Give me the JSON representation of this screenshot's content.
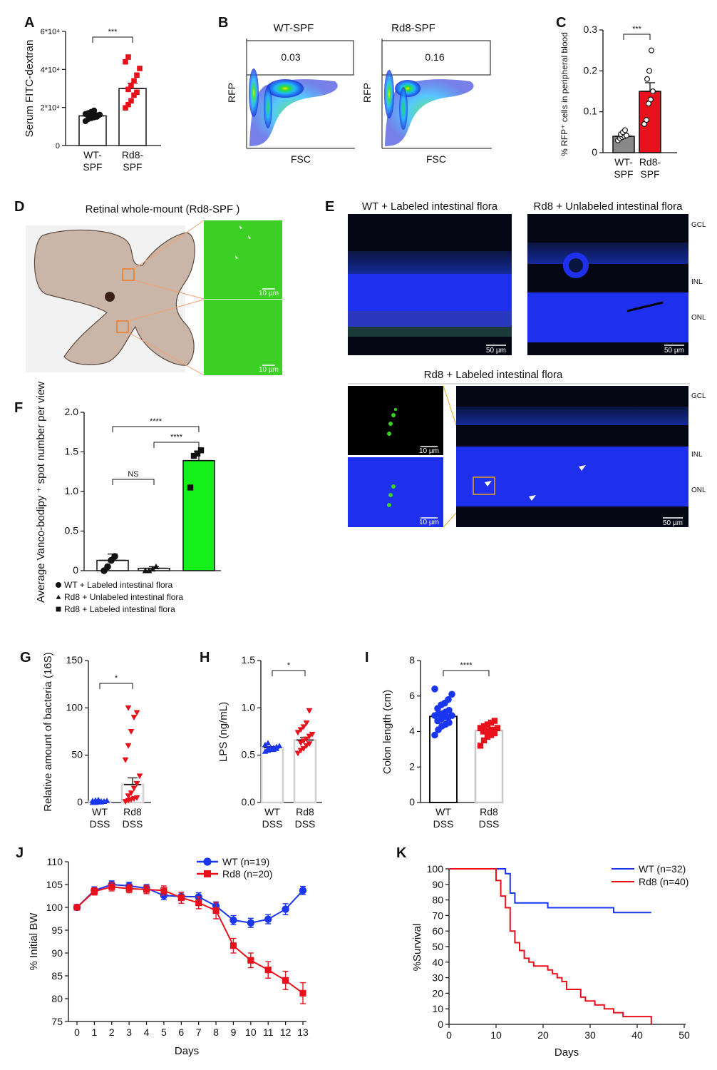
{
  "panel_letters": {
    "a": "A",
    "b": "B",
    "c": "C",
    "d": "D",
    "e": "E",
    "f": "F",
    "g": "G",
    "h": "H",
    "i": "I",
    "j": "J",
    "k": "K"
  },
  "colors": {
    "red": "#e8101a",
    "blue": "#1a36f0",
    "green": "#16f01a",
    "gray": "#888888",
    "micro_blue": "#1e30ee",
    "micro_green": "#3ccf24",
    "black": "#111111"
  },
  "images": {
    "d_title": "Retinal whole-mount (Rd8-SPF )",
    "d_scale_top": "10 µm",
    "d_scale_bottom": "10 µm",
    "e_title_wt": "WT + Labeled intestinal flora",
    "e_title_rd8u": "Rd8 + Unlabeled intestinal flora",
    "e_title_rd8l": "Rd8 + Labeled intestinal flora",
    "scale_50": "50 µm",
    "scale_10": "10 µm",
    "layer_gcl": "GCL",
    "layer_inl": "INL",
    "layer_onl": "ONL"
  },
  "chart_data": [
    {
      "id": "A",
      "type": "scatter-bar",
      "ylabel": "Serum FITC-dextran",
      "yticks": [
        "0",
        "2*10⁴",
        "4*10⁴",
        "6*10⁴"
      ],
      "ylim": [
        0,
        60000
      ],
      "categories": [
        [
          "WT-",
          "SPF"
        ],
        [
          "Rd8-",
          "SPF"
        ]
      ],
      "means": [
        15600,
        30000
      ],
      "sem": [
        700,
        2800
      ],
      "significance": "***",
      "points": [
        [
          12800,
          13900,
          14400,
          14800,
          15100,
          15300,
          15500,
          15700,
          15900,
          16200,
          16600,
          17100,
          17700,
          18400
        ],
        [
          19800,
          21500,
          23500,
          26500,
          28000,
          29500,
          31500,
          34000,
          37000,
          40500,
          44000,
          46500
        ]
      ]
    },
    {
      "id": "B",
      "type": "flow-cytometry",
      "panels": [
        {
          "title": "WT-SPF",
          "gate_value": "0.03"
        },
        {
          "title": "Rd8-SPF",
          "gate_value": "0.16"
        }
      ],
      "ylabel": "RFP",
      "xlabel": "FSC"
    },
    {
      "id": "C",
      "type": "scatter-bar",
      "ylabel": "% RFP⁺ cells in peripheral blood",
      "yticks": [
        "0",
        "0.1",
        "0.2",
        "0.3"
      ],
      "ylim": [
        0,
        0.3
      ],
      "categories": [
        [
          "WT-",
          "SPF"
        ],
        [
          "Rd8-",
          "SPF"
        ]
      ],
      "means": [
        0.04,
        0.15
      ],
      "sem": [
        0.005,
        0.021
      ],
      "significance": "***",
      "points": [
        [
          0.03,
          0.035,
          0.038,
          0.04,
          0.042,
          0.045,
          0.05,
          0.055
        ],
        [
          0.07,
          0.08,
          0.12,
          0.13,
          0.15,
          0.18,
          0.2,
          0.25
        ]
      ]
    },
    {
      "id": "F",
      "type": "scatter-bar",
      "ylabel": "Average Vanco-bodipy ⁺ spot number per view",
      "yticks": [
        "0",
        "0.5",
        "1.0",
        "1.5",
        "2.0"
      ],
      "ylim": [
        0,
        2.0
      ],
      "categories": [
        "",
        "",
        ""
      ],
      "means": [
        0.13,
        0.03,
        1.39
      ],
      "sem": [
        0.08,
        0.02,
        0.12
      ],
      "points": [
        [
          0.0,
          0.05,
          0.13,
          0.18
        ],
        [
          0.0,
          0.0,
          0.02,
          0.05
        ],
        [
          1.05,
          1.45,
          1.48,
          1.52
        ]
      ],
      "comparisons": [
        {
          "pair": [
            0,
            2
          ],
          "label": "****"
        },
        {
          "pair": [
            1,
            2
          ],
          "label": "****"
        },
        {
          "pair": [
            0,
            1
          ],
          "label": "NS"
        }
      ],
      "legend": [
        "WT  + Labeled intestinal flora",
        "Rd8 + Unlabeled intestinal flora",
        "Rd8 + Labeled intestinal flora"
      ]
    },
    {
      "id": "G",
      "type": "scatter-bar",
      "ylabel": "Relative amount of bacteria (16S)",
      "yticks": [
        "0",
        "50",
        "100",
        "150"
      ],
      "ylim": [
        0,
        150
      ],
      "categories": [
        [
          "WT",
          "DSS"
        ],
        [
          "Rd8",
          "DSS"
        ]
      ],
      "means": [
        1,
        19
      ],
      "sem": [
        0.5,
        7
      ],
      "significance": "*",
      "points": [
        [
          0,
          0,
          0.5,
          0.5,
          1,
          1,
          1,
          1.5,
          1.5,
          2,
          2,
          2.5,
          3
        ],
        [
          1,
          2,
          3,
          4,
          5,
          7,
          10,
          15,
          20,
          28,
          45,
          60,
          75,
          90,
          95,
          100
        ]
      ]
    },
    {
      "id": "H",
      "type": "scatter-bar",
      "ylabel": "LPS (ng/mL)",
      "yticks": [
        "0.0",
        "0.5",
        "1.0",
        "1.5"
      ],
      "ylim": [
        0,
        1.5
      ],
      "categories": [
        [
          "WT",
          "DSS"
        ],
        [
          "Rd8",
          "DSS"
        ]
      ],
      "means": [
        0.58,
        0.66
      ],
      "sem": [
        0.01,
        0.03
      ],
      "significance": "*",
      "points": [
        [
          0.54,
          0.55,
          0.56,
          0.56,
          0.57,
          0.57,
          0.58,
          0.58,
          0.59,
          0.6,
          0.61,
          0.63
        ],
        [
          0.52,
          0.55,
          0.57,
          0.6,
          0.62,
          0.63,
          0.65,
          0.67,
          0.7,
          0.72,
          0.74,
          0.77,
          0.8,
          0.84,
          0.97
        ]
      ]
    },
    {
      "id": "I",
      "type": "scatter-bar",
      "ylabel": "Colon length (cm)",
      "yticks": [
        "0",
        "2",
        "4",
        "6",
        "8"
      ],
      "ylim": [
        0,
        8
      ],
      "categories": [
        [
          "WT",
          "DSS"
        ],
        [
          "Rd8",
          "DSS"
        ]
      ],
      "means": [
        4.85,
        4.05
      ],
      "sem": [
        0.1,
        0.08
      ],
      "significance": "****",
      "points": [
        [
          3.8,
          4.1,
          4.3,
          4.4,
          4.5,
          4.6,
          4.7,
          4.8,
          4.8,
          4.9,
          4.9,
          5.0,
          5.0,
          5.1,
          5.2,
          5.3,
          5.5,
          5.6,
          5.8,
          6.1,
          6.4
        ],
        [
          3.2,
          3.5,
          3.7,
          3.8,
          3.9,
          4.0,
          4.0,
          4.1,
          4.1,
          4.2,
          4.2,
          4.3,
          4.4,
          4.5,
          4.6
        ]
      ]
    },
    {
      "id": "J",
      "type": "line",
      "xlabel": "Days",
      "ylabel": "% Initial BW",
      "x": [
        0,
        1,
        2,
        3,
        4,
        5,
        6,
        7,
        8,
        9,
        10,
        11,
        12,
        13
      ],
      "ylim": [
        75,
        110
      ],
      "yticks": [
        "75",
        "80",
        "85",
        "90",
        "95",
        "100",
        "105",
        "110"
      ],
      "series": [
        {
          "name": "WT (n=19)",
          "values": [
            100,
            103.7,
            105,
            104.7,
            104.2,
            102.6,
            102.4,
            102.3,
            100.3,
            97.2,
            96.6,
            97.4,
            99.6,
            103.7
          ],
          "err": [
            0.5,
            0.8,
            0.8,
            0.8,
            0.8,
            0.9,
            0.9,
            0.9,
            0.9,
            1.0,
            1.0,
            1.0,
            1.2,
            0.9
          ]
        },
        {
          "name": "Rd8 (n=20)",
          "values": [
            100,
            103.5,
            104.5,
            104.1,
            103.9,
            103.7,
            102.1,
            101,
            99.3,
            91.6,
            88.4,
            86.3,
            84,
            81.2
          ],
          "err": [
            0.5,
            0.8,
            0.9,
            0.9,
            0.9,
            1.0,
            1.2,
            1.3,
            1.8,
            1.6,
            1.6,
            1.8,
            2.0,
            2.3
          ]
        }
      ]
    },
    {
      "id": "K",
      "type": "survival",
      "xlabel": "Days",
      "ylabel": "%Survival",
      "xlim": [
        0,
        50
      ],
      "ylim": [
        0,
        100
      ],
      "xticks": [
        "0",
        "10",
        "20",
        "30",
        "40",
        "50"
      ],
      "yticks": [
        "0",
        "10",
        "20",
        "30",
        "40",
        "50",
        "60",
        "70",
        "80",
        "90",
        "100"
      ],
      "series": [
        {
          "name": "WT (n=32)",
          "steps": [
            [
              0,
              100
            ],
            [
              12,
              100
            ],
            [
              12,
              96.9
            ],
            [
              13,
              96.9
            ],
            [
              13,
              84.4
            ],
            [
              14,
              84.4
            ],
            [
              14,
              78.1
            ],
            [
              21,
              78.1
            ],
            [
              21,
              75
            ],
            [
              35,
              75
            ],
            [
              35,
              71.9
            ],
            [
              43,
              71.9
            ]
          ]
        },
        {
          "name": "Rd8 (n=40)",
          "steps": [
            [
              0,
              100
            ],
            [
              10,
              100
            ],
            [
              10,
              92.5
            ],
            [
              11,
              92.5
            ],
            [
              11,
              82.5
            ],
            [
              12,
              82.5
            ],
            [
              12,
              75
            ],
            [
              13,
              75
            ],
            [
              13,
              60
            ],
            [
              14,
              60
            ],
            [
              14,
              52.5
            ],
            [
              15,
              52.5
            ],
            [
              15,
              47.5
            ],
            [
              16,
              47.5
            ],
            [
              16,
              42.5
            ],
            [
              17,
              42.5
            ],
            [
              17,
              40
            ],
            [
              18,
              40
            ],
            [
              18,
              37.5
            ],
            [
              21,
              37.5
            ],
            [
              21,
              35
            ],
            [
              22,
              35
            ],
            [
              22,
              32.5
            ],
            [
              23,
              32.5
            ],
            [
              23,
              30
            ],
            [
              24,
              30
            ],
            [
              24,
              27.5
            ],
            [
              25,
              27.5
            ],
            [
              25,
              22.5
            ],
            [
              28,
              22.5
            ],
            [
              28,
              17.5
            ],
            [
              29,
              17.5
            ],
            [
              29,
              15
            ],
            [
              31,
              15
            ],
            [
              31,
              12.5
            ],
            [
              33,
              12.5
            ],
            [
              33,
              10
            ],
            [
              35,
              10
            ],
            [
              35,
              7.5
            ],
            [
              37,
              7.5
            ],
            [
              37,
              5
            ],
            [
              43,
              5
            ],
            [
              43,
              0
            ]
          ]
        }
      ]
    }
  ]
}
